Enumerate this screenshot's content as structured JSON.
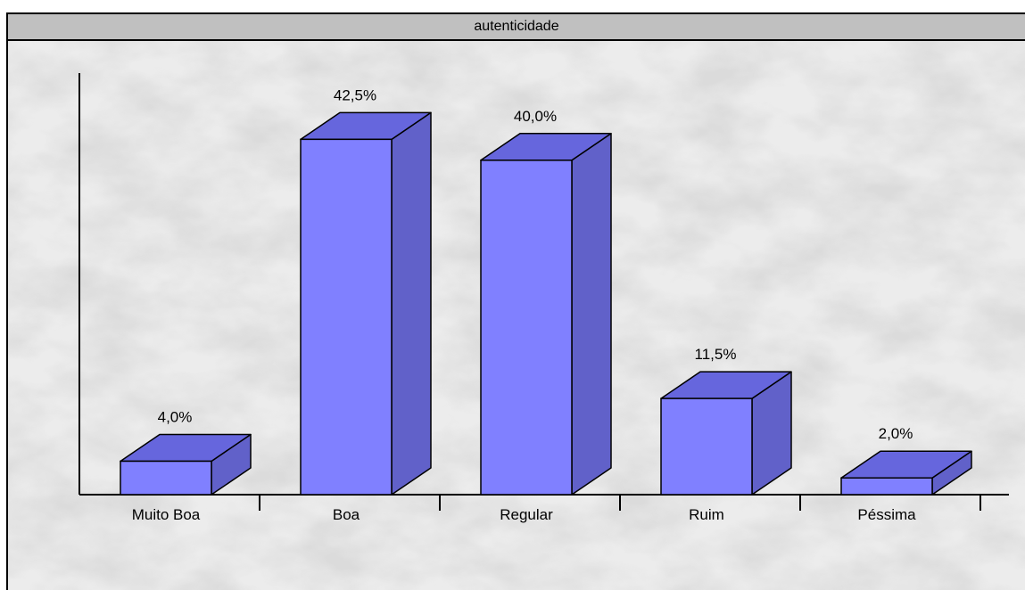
{
  "chart_data": {
    "type": "bar",
    "title": "autenticidade",
    "categories": [
      "Muito Boa",
      "Boa",
      "Regular",
      "Ruim",
      "Péssima"
    ],
    "values": [
      4.0,
      42.5,
      40.0,
      11.5,
      2.0
    ],
    "value_labels": [
      "4,0%",
      "42,5%",
      "40,0%",
      "11,5%",
      "2,0%"
    ],
    "ylim": [
      0,
      50
    ],
    "grid": false,
    "legend": false,
    "style": "3d-column",
    "colors": {
      "front": "#8080ff",
      "top": "#6666dd",
      "side": "#6161c9",
      "outline": "#000000"
    }
  }
}
